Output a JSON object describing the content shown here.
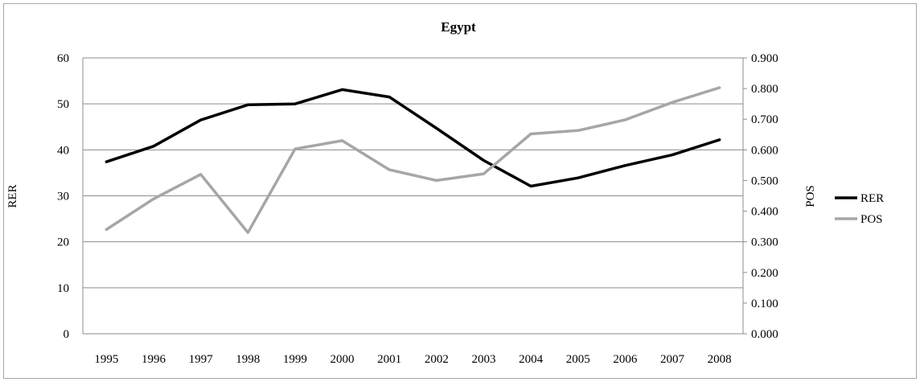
{
  "chart_data": {
    "type": "line",
    "title": "Egypt",
    "xlabel": "",
    "ylabel": "RER",
    "y2label": "POS",
    "categories": [
      "1995",
      "1996",
      "1997",
      "1998",
      "1999",
      "2000",
      "2001",
      "2002",
      "2003",
      "2004",
      "2005",
      "2006",
      "2007",
      "2008"
    ],
    "ylim": [
      0,
      60
    ],
    "y2lim": [
      0,
      0.9
    ],
    "yticks": [
      "0",
      "10",
      "20",
      "30",
      "40",
      "50",
      "60"
    ],
    "y2ticks": [
      "0.000",
      "0.100",
      "0.200",
      "0.300",
      "0.400",
      "0.500",
      "0.600",
      "0.700",
      "0.800",
      "0.900"
    ],
    "grid": true,
    "legend_position": "right",
    "series": [
      {
        "name": "RER",
        "axis": "left",
        "color": "#000000",
        "values": [
          37.4,
          40.8,
          46.5,
          49.8,
          50.0,
          53.1,
          51.5,
          44.7,
          37.7,
          32.1,
          33.9,
          36.6,
          38.9,
          42.2
        ]
      },
      {
        "name": "POS",
        "axis": "right",
        "color": "#a6a6a6",
        "values": [
          0.34,
          0.44,
          0.52,
          0.33,
          0.603,
          0.63,
          0.535,
          0.5,
          0.522,
          0.652,
          0.663,
          0.698,
          0.755,
          0.803
        ]
      }
    ]
  }
}
